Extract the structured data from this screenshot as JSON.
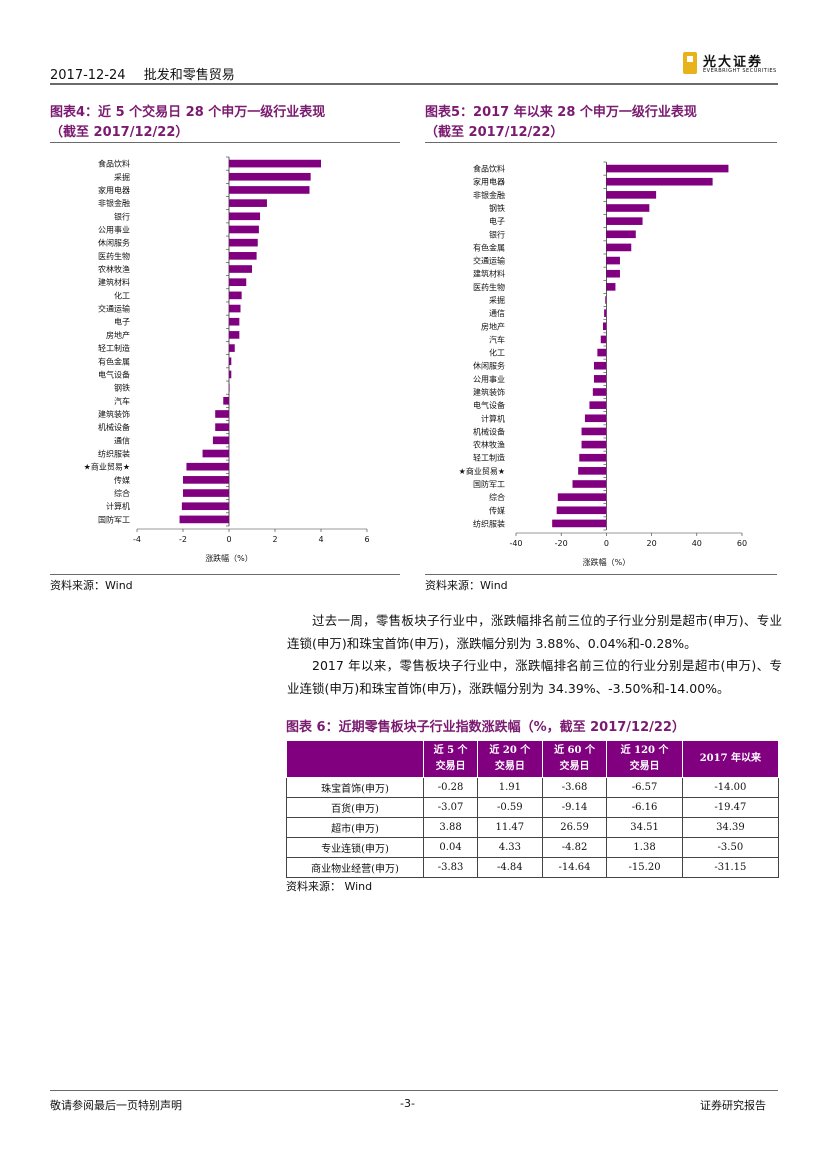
{
  "header": {
    "date": "2017-12-24",
    "section": "批发和零售贸易",
    "logo_cn": "光大证券",
    "logo_en": "EVERBRIGHT SECURITIES"
  },
  "fig4": {
    "title": "图表4：近 5 个交易日 28 个申万一级行业表现",
    "subtitle": "（截至 2017/12/22）",
    "source": "资料来源：Wind"
  },
  "fig5": {
    "title": "图表5：2017 年以来 28 个申万一级行业表现",
    "subtitle": "（截至 2017/12/22）",
    "source": "资料来源：Wind"
  },
  "chart_data": [
    {
      "type": "bar",
      "orientation": "horizontal",
      "categories": [
        "食品饮料",
        "采掘",
        "家用电器",
        "非银金融",
        "银行",
        "公用事业",
        "休闲服务",
        "医药生物",
        "农林牧渔",
        "建筑材料",
        "化工",
        "交通运输",
        "电子",
        "房地产",
        "轻工制造",
        "有色金属",
        "电气设备",
        "钢铁",
        "汽车",
        "建筑装饰",
        "机械设备",
        "通信",
        "纺织服装",
        "★商业贸易★",
        "传媒",
        "综合",
        "计算机",
        "国防军工"
      ],
      "values": [
        4.0,
        3.55,
        3.5,
        1.65,
        1.35,
        1.3,
        1.25,
        1.2,
        1.0,
        0.75,
        0.55,
        0.5,
        0.45,
        0.45,
        0.25,
        0.1,
        0.1,
        0.0,
        -0.25,
        -0.6,
        -0.6,
        -0.7,
        -1.15,
        -1.85,
        -2.0,
        -2.0,
        -2.05,
        -2.15
      ],
      "xlabel": "涨跌幅（%）",
      "xlim": [
        -4,
        6
      ],
      "xticks": [
        -4,
        -2,
        0,
        2,
        4,
        6
      ],
      "color": "#800080"
    },
    {
      "type": "bar",
      "orientation": "horizontal",
      "categories": [
        "食品饮料",
        "家用电器",
        "非银金融",
        "钢铁",
        "电子",
        "银行",
        "有色金属",
        "交通运输",
        "建筑材料",
        "医药生物",
        "采掘",
        "通信",
        "房地产",
        "汽车",
        "化工",
        "休闲服务",
        "公用事业",
        "建筑装饰",
        "电气设备",
        "计算机",
        "机械设备",
        "农林牧渔",
        "轻工制造",
        "★商业贸易★",
        "国防军工",
        "综合",
        "传媒",
        "纺织服装"
      ],
      "values": [
        54,
        47,
        22,
        19,
        16,
        13,
        11,
        6,
        6,
        4,
        -0.5,
        -1,
        -1.5,
        -2.5,
        -4,
        -5.5,
        -5.5,
        -6,
        -7.5,
        -9.5,
        -11,
        -11,
        -12,
        -12.5,
        -15,
        -21.5,
        -22,
        -24
      ],
      "xlabel": "涨跌幅（%）",
      "xlim": [
        -40,
        60
      ],
      "xticks": [
        -40,
        -20,
        0,
        20,
        40,
        60
      ],
      "color": "#800080"
    },
    {
      "type": "table",
      "columns": [
        "",
        "近 5 个\n交易日",
        "近 20 个\n交易日",
        "近 60 个\n交易日",
        "近 120 个\n交易日",
        "2017 年以来"
      ],
      "rows": [
        [
          "珠宝首饰(申万)",
          "-0.28",
          "1.91",
          "-3.68",
          "-6.57",
          "-14.00"
        ],
        [
          "百货(申万)",
          "-3.07",
          "-0.59",
          "-9.14",
          "-6.16",
          "-19.47"
        ],
        [
          "超市(申万)",
          "3.88",
          "11.47",
          "26.59",
          "34.51",
          "34.39"
        ],
        [
          "专业连锁(申万)",
          "0.04",
          "4.33",
          "-4.82",
          "1.38",
          "-3.50"
        ],
        [
          "商业物业经营(申万)",
          "-3.83",
          "-4.84",
          "-14.64",
          "-15.20",
          "-31.15"
        ]
      ]
    }
  ],
  "paragraph": {
    "p1": "过去一周，零售板块子行业中，涨跌幅排名前三位的子行业分别是超市(申万)、专业连锁(申万)和珠宝首饰(申万)，涨跌幅分别为 3.88%、0.04%和-0.28%。",
    "p2": "2017 年以来，零售板块子行业中，涨跌幅排名前三位的行业分别是超市(申万)、专业连锁(申万)和珠宝首饰(申万)，涨跌幅分别为 34.39%、-3.50%和-14.00%。"
  },
  "fig6": {
    "title": "图表 6：近期零售板块子行业指数涨跌幅（%，截至 2017/12/22）",
    "source": "资料来源：  Wind"
  },
  "footer": {
    "left": "敬请参阅最后一页特别声明",
    "page": "-3-",
    "right": "证券研究报告"
  }
}
